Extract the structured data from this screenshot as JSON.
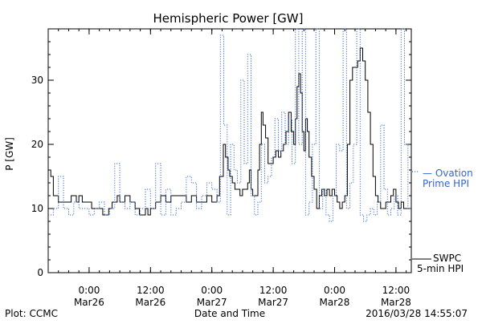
{
  "chart_data": {
    "type": "line",
    "title": "Hemispheric Power [GW]",
    "ylabel": "P [GW]",
    "xlabel": "Date and Time",
    "ylim": [
      0,
      38
    ],
    "xlim": [
      "2016-03-25 16:00",
      "2016-03-28 15:00"
    ],
    "yticks": [
      0,
      10,
      20,
      30
    ],
    "xticks": [
      {
        "x": "2016-03-26 00:00",
        "label": [
          "0:00",
          "Mar26"
        ]
      },
      {
        "x": "2016-03-26 12:00",
        "label": [
          "12:00",
          "Mar26"
        ]
      },
      {
        "x": "2016-03-27 00:00",
        "label": [
          "0:00",
          "Mar27"
        ]
      },
      {
        "x": "2016-03-27 12:00",
        "label": [
          "12:00",
          "Mar27"
        ]
      },
      {
        "x": "2016-03-28 00:00",
        "label": [
          "0:00",
          "Mar28"
        ]
      },
      {
        "x": "2016-03-28 12:00",
        "label": [
          "12:00",
          "Mar28"
        ]
      }
    ],
    "grid": false,
    "legend_position": "right",
    "series": [
      {
        "name": "SWPC 5-min HPI",
        "legend_lines": [
          "SWPC",
          "5-min HPI"
        ],
        "color": "#000000",
        "style": "solid-step",
        "points": [
          [
            "2016-03-25 16:00",
            16
          ],
          [
            "2016-03-25 16:30",
            15
          ],
          [
            "2016-03-25 17:00",
            12
          ],
          [
            "2016-03-25 18:00",
            11
          ],
          [
            "2016-03-25 19:00",
            11
          ],
          [
            "2016-03-25 20:00",
            11
          ],
          [
            "2016-03-25 20:30",
            12
          ],
          [
            "2016-03-25 21:30",
            11
          ],
          [
            "2016-03-25 22:00",
            12
          ],
          [
            "2016-03-25 22:40",
            11
          ],
          [
            "2016-03-26 00:00",
            11
          ],
          [
            "2016-03-26 00:30",
            10
          ],
          [
            "2016-03-26 02:00",
            10
          ],
          [
            "2016-03-26 02:40",
            9
          ],
          [
            "2016-03-26 03:50",
            10
          ],
          [
            "2016-03-26 04:30",
            11
          ],
          [
            "2016-03-26 05:30",
            12
          ],
          [
            "2016-03-26 06:00",
            11
          ],
          [
            "2016-03-26 07:00",
            12
          ],
          [
            "2016-03-26 08:00",
            11
          ],
          [
            "2016-03-26 09:00",
            10
          ],
          [
            "2016-03-26 09:50",
            9
          ],
          [
            "2016-03-26 11:00",
            10
          ],
          [
            "2016-03-26 11:30",
            9
          ],
          [
            "2016-03-26 12:00",
            10
          ],
          [
            "2016-03-26 13:00",
            11
          ],
          [
            "2016-03-26 14:00",
            12
          ],
          [
            "2016-03-26 15:00",
            11
          ],
          [
            "2016-03-26 16:00",
            12
          ],
          [
            "2016-03-26 17:00",
            12
          ],
          [
            "2016-03-26 18:00",
            12
          ],
          [
            "2016-03-26 19:00",
            11
          ],
          [
            "2016-03-26 20:00",
            12
          ],
          [
            "2016-03-26 21:00",
            11
          ],
          [
            "2016-03-26 22:00",
            11
          ],
          [
            "2016-03-26 23:00",
            12
          ],
          [
            "2016-03-27 00:00",
            11
          ],
          [
            "2016-03-27 00:30",
            11
          ],
          [
            "2016-03-27 01:00",
            12
          ],
          [
            "2016-03-27 01:30",
            15
          ],
          [
            "2016-03-27 02:15",
            20
          ],
          [
            "2016-03-27 02:40",
            18
          ],
          [
            "2016-03-27 03:10",
            16
          ],
          [
            "2016-03-27 03:30",
            15
          ],
          [
            "2016-03-27 04:00",
            14
          ],
          [
            "2016-03-27 04:30",
            13
          ],
          [
            "2016-03-27 05:00",
            13
          ],
          [
            "2016-03-27 05:30",
            12
          ],
          [
            "2016-03-27 06:00",
            13
          ],
          [
            "2016-03-27 06:30",
            13
          ],
          [
            "2016-03-27 07:00",
            14
          ],
          [
            "2016-03-27 07:20",
            16
          ],
          [
            "2016-03-27 07:40",
            13
          ],
          [
            "2016-03-27 08:00",
            12
          ],
          [
            "2016-03-27 08:20",
            12
          ],
          [
            "2016-03-27 09:00",
            16
          ],
          [
            "2016-03-27 09:20",
            20
          ],
          [
            "2016-03-27 09:40",
            25
          ],
          [
            "2016-03-27 10:00",
            23
          ],
          [
            "2016-03-27 10:30",
            21
          ],
          [
            "2016-03-27 11:00",
            17
          ],
          [
            "2016-03-27 11:30",
            17
          ],
          [
            "2016-03-27 12:00",
            18
          ],
          [
            "2016-03-27 12:30",
            19
          ],
          [
            "2016-03-27 13:00",
            18
          ],
          [
            "2016-03-27 13:30",
            19
          ],
          [
            "2016-03-27 14:00",
            20
          ],
          [
            "2016-03-27 14:30",
            22
          ],
          [
            "2016-03-27 15:00",
            25
          ],
          [
            "2016-03-27 15:30",
            22
          ],
          [
            "2016-03-27 16:00",
            20
          ],
          [
            "2016-03-27 16:20",
            24
          ],
          [
            "2016-03-27 16:40",
            29
          ],
          [
            "2016-03-27 17:00",
            31
          ],
          [
            "2016-03-27 17:20",
            28
          ],
          [
            "2016-03-27 17:40",
            22
          ],
          [
            "2016-03-27 18:00",
            19
          ],
          [
            "2016-03-27 18:20",
            24
          ],
          [
            "2016-03-27 18:40",
            22
          ],
          [
            "2016-03-27 19:00",
            18
          ],
          [
            "2016-03-27 19:30",
            15
          ],
          [
            "2016-03-27 20:00",
            13
          ],
          [
            "2016-03-27 20:30",
            10
          ],
          [
            "2016-03-27 21:00",
            12
          ],
          [
            "2016-03-27 21:30",
            13
          ],
          [
            "2016-03-27 22:00",
            12
          ],
          [
            "2016-03-27 22:30",
            13
          ],
          [
            "2016-03-27 23:00",
            12
          ],
          [
            "2016-03-27 23:30",
            13
          ],
          [
            "2016-03-28 00:00",
            12
          ],
          [
            "2016-03-28 00:30",
            11
          ],
          [
            "2016-03-28 01:00",
            10
          ],
          [
            "2016-03-28 01:30",
            11
          ],
          [
            "2016-03-28 02:00",
            12
          ],
          [
            "2016-03-28 02:30",
            20
          ],
          [
            "2016-03-28 03:00",
            30
          ],
          [
            "2016-03-28 03:30",
            32
          ],
          [
            "2016-03-28 04:00",
            32
          ],
          [
            "2016-03-28 04:30",
            33
          ],
          [
            "2016-03-28 05:00",
            35
          ],
          [
            "2016-03-28 05:30",
            33
          ],
          [
            "2016-03-28 06:00",
            30
          ],
          [
            "2016-03-28 06:30",
            25
          ],
          [
            "2016-03-28 07:00",
            20
          ],
          [
            "2016-03-28 07:30",
            15
          ],
          [
            "2016-03-28 08:00",
            12
          ],
          [
            "2016-03-28 08:30",
            11
          ],
          [
            "2016-03-28 09:00",
            10
          ],
          [
            "2016-03-28 09:30",
            10
          ],
          [
            "2016-03-28 10:00",
            11
          ],
          [
            "2016-03-28 10:30",
            11
          ],
          [
            "2016-03-28 11:00",
            12
          ],
          [
            "2016-03-28 11:30",
            13
          ],
          [
            "2016-03-28 12:00",
            11
          ],
          [
            "2016-03-28 12:30",
            10
          ],
          [
            "2016-03-28 13:00",
            11
          ],
          [
            "2016-03-28 13:30",
            10
          ],
          [
            "2016-03-28 14:00",
            10
          ],
          [
            "2016-03-28 15:00",
            10
          ]
        ]
      },
      {
        "name": "Ovation Prime HPI",
        "legend_lines": [
          "— Ovation",
          "Prime HPI"
        ],
        "color": "#3366cc",
        "style": "dotted-step",
        "points": [
          [
            "2016-03-25 16:00",
            9
          ],
          [
            "2016-03-25 17:00",
            10
          ],
          [
            "2016-03-25 18:00",
            15
          ],
          [
            "2016-03-25 19:00",
            10
          ],
          [
            "2016-03-25 20:00",
            9
          ],
          [
            "2016-03-25 21:00",
            11
          ],
          [
            "2016-03-25 22:00",
            10
          ],
          [
            "2016-03-25 23:00",
            10
          ],
          [
            "2016-03-26 00:00",
            9
          ],
          [
            "2016-03-26 01:00",
            10
          ],
          [
            "2016-03-26 02:00",
            11
          ],
          [
            "2016-03-26 03:00",
            9
          ],
          [
            "2016-03-26 04:00",
            10
          ],
          [
            "2016-03-26 05:00",
            17
          ],
          [
            "2016-03-26 06:00",
            11
          ],
          [
            "2016-03-26 07:00",
            10
          ],
          [
            "2016-03-26 08:00",
            11
          ],
          [
            "2016-03-26 09:00",
            9
          ],
          [
            "2016-03-26 10:00",
            10
          ],
          [
            "2016-03-26 11:00",
            13
          ],
          [
            "2016-03-26 12:00",
            10
          ],
          [
            "2016-03-26 13:00",
            17
          ],
          [
            "2016-03-26 14:00",
            9
          ],
          [
            "2016-03-26 15:00",
            13
          ],
          [
            "2016-03-26 16:00",
            9
          ],
          [
            "2016-03-26 17:00",
            10
          ],
          [
            "2016-03-26 18:00",
            11
          ],
          [
            "2016-03-26 19:00",
            15
          ],
          [
            "2016-03-26 20:00",
            14
          ],
          [
            "2016-03-26 21:00",
            10
          ],
          [
            "2016-03-26 22:00",
            12
          ],
          [
            "2016-03-26 23:00",
            14
          ],
          [
            "2016-03-27 00:00",
            13
          ],
          [
            "2016-03-27 01:00",
            11
          ],
          [
            "2016-03-27 01:40",
            37
          ],
          [
            "2016-03-27 02:20",
            23
          ],
          [
            "2016-03-27 03:00",
            9
          ],
          [
            "2016-03-27 03:40",
            20
          ],
          [
            "2016-03-27 04:20",
            16
          ],
          [
            "2016-03-27 05:00",
            14
          ],
          [
            "2016-03-27 05:40",
            30
          ],
          [
            "2016-03-27 06:20",
            17
          ],
          [
            "2016-03-27 07:00",
            34
          ],
          [
            "2016-03-27 07:40",
            12
          ],
          [
            "2016-03-27 08:20",
            9
          ],
          [
            "2016-03-27 09:00",
            11
          ],
          [
            "2016-03-27 09:40",
            20
          ],
          [
            "2016-03-27 10:20",
            14
          ],
          [
            "2016-03-27 11:00",
            15
          ],
          [
            "2016-03-27 11:40",
            18
          ],
          [
            "2016-03-27 12:20",
            24
          ],
          [
            "2016-03-27 13:00",
            19
          ],
          [
            "2016-03-27 13:40",
            25
          ],
          [
            "2016-03-27 14:20",
            20
          ],
          [
            "2016-03-27 15:00",
            24
          ],
          [
            "2016-03-27 15:40",
            17
          ],
          [
            "2016-03-27 16:20",
            38
          ],
          [
            "2016-03-27 17:00",
            20
          ],
          [
            "2016-03-27 17:40",
            38
          ],
          [
            "2016-03-27 18:20",
            9
          ],
          [
            "2016-03-27 19:00",
            11
          ],
          [
            "2016-03-27 19:40",
            20
          ],
          [
            "2016-03-27 20:20",
            38
          ],
          [
            "2016-03-27 21:00",
            10
          ],
          [
            "2016-03-27 21:40",
            13
          ],
          [
            "2016-03-27 22:20",
            9
          ],
          [
            "2016-03-27 23:00",
            8
          ],
          [
            "2016-03-27 23:40",
            12
          ],
          [
            "2016-03-28 00:20",
            20
          ],
          [
            "2016-03-28 01:00",
            19
          ],
          [
            "2016-03-28 01:40",
            38
          ],
          [
            "2016-03-28 02:20",
            10
          ],
          [
            "2016-03-28 03:00",
            14
          ],
          [
            "2016-03-28 03:40",
            20
          ],
          [
            "2016-03-28 04:20",
            38
          ],
          [
            "2016-03-28 05:00",
            9
          ],
          [
            "2016-03-28 05:40",
            8
          ],
          [
            "2016-03-28 06:20",
            9
          ],
          [
            "2016-03-28 07:00",
            10
          ],
          [
            "2016-03-28 07:40",
            9
          ],
          [
            "2016-03-28 08:20",
            11
          ],
          [
            "2016-03-28 09:00",
            23
          ],
          [
            "2016-03-28 09:40",
            13
          ],
          [
            "2016-03-28 10:20",
            9
          ],
          [
            "2016-03-28 11:00",
            10
          ],
          [
            "2016-03-28 11:40",
            12
          ],
          [
            "2016-03-28 12:20",
            9
          ],
          [
            "2016-03-28 13:00",
            38
          ],
          [
            "2016-03-28 13:40",
            20
          ],
          [
            "2016-03-28 14:20",
            10
          ],
          [
            "2016-03-28 15:00",
            10
          ]
        ]
      }
    ]
  },
  "footer": {
    "left": "Plot: CCMC",
    "right": "2016/03/28 14:55:07"
  }
}
